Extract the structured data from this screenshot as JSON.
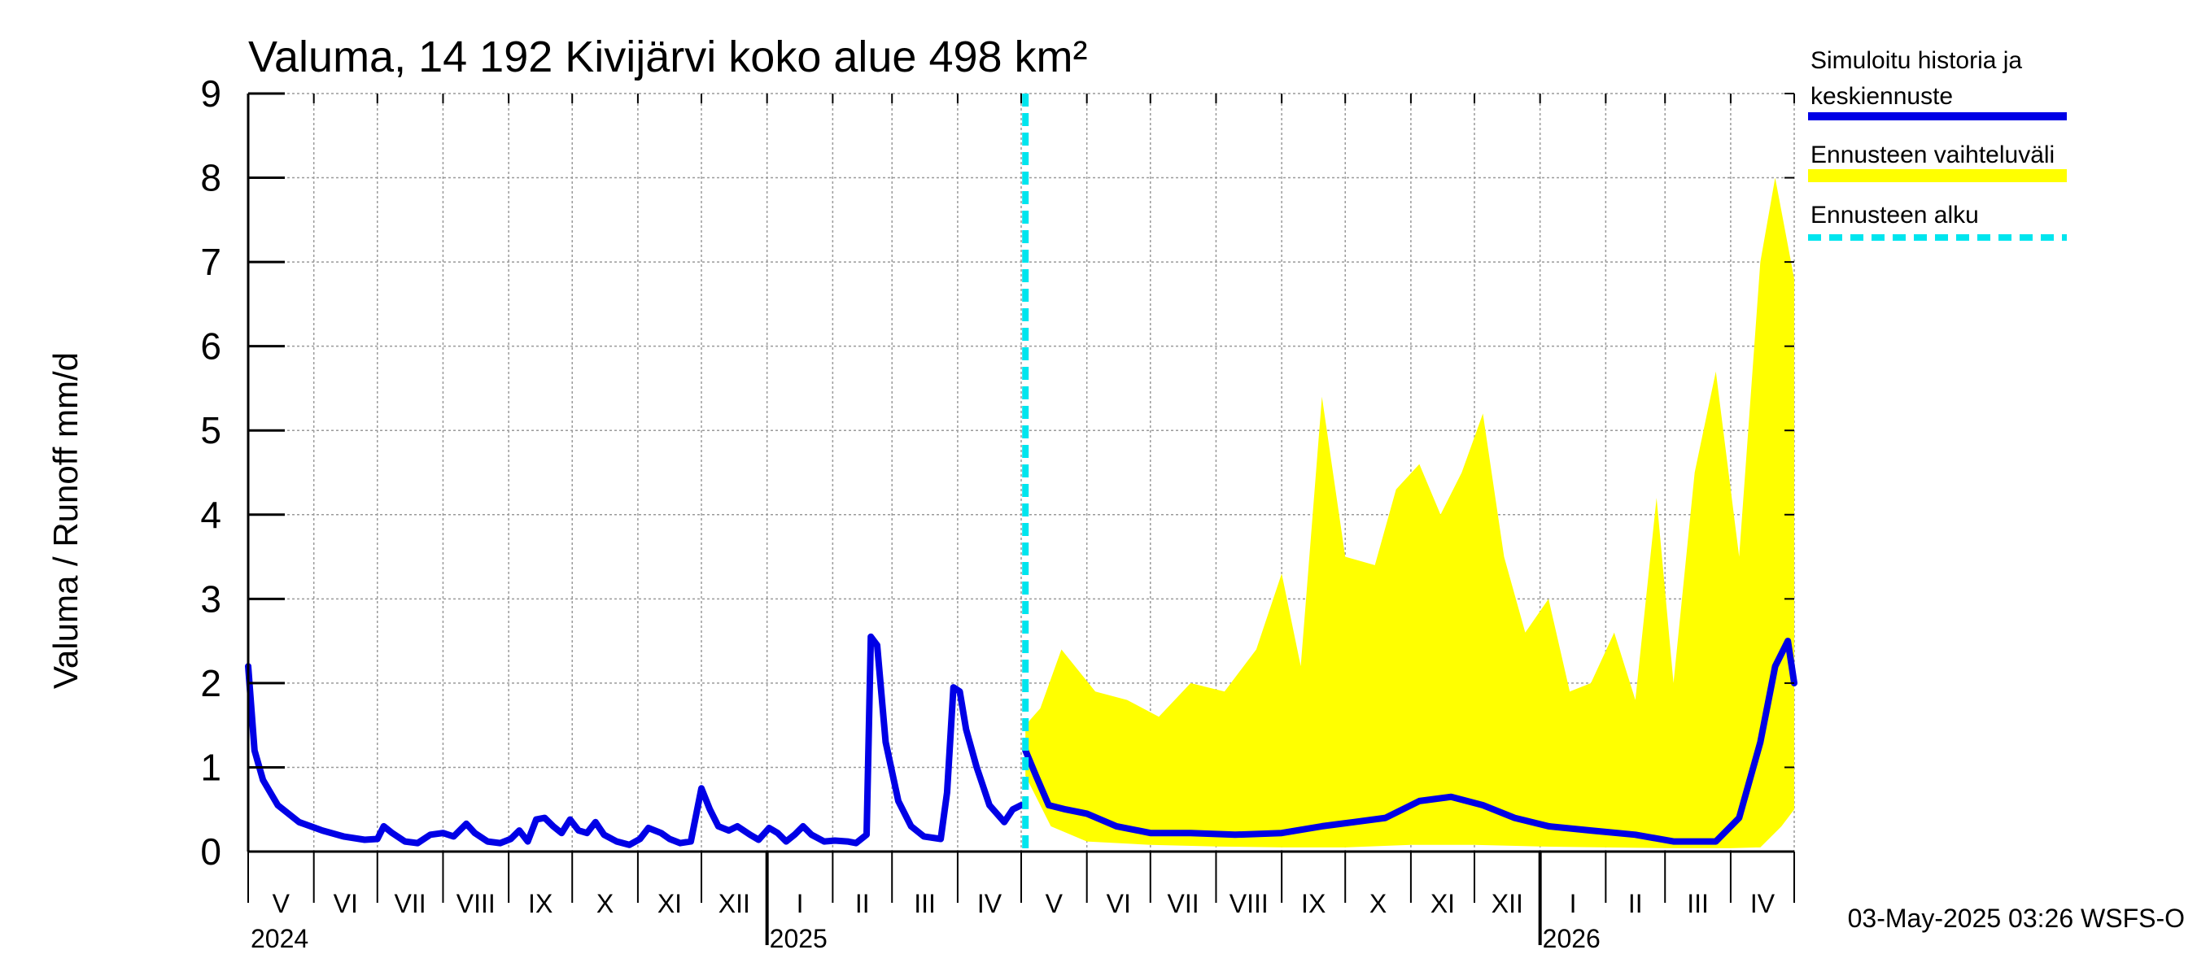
{
  "chart_data": {
    "type": "line",
    "title": "Valuma, 14 192 Kivijärvi koko alue 498 km²",
    "ylabel": "Valuma / Runoff    mm/d",
    "ylim": [
      0,
      9
    ],
    "yticks": [
      "0",
      "1",
      "2",
      "3",
      "4",
      "5",
      "6",
      "7",
      "8",
      "9"
    ],
    "xlim": [
      "2024-05-01",
      "2026-05-01"
    ],
    "grid": true,
    "legend_position": "right",
    "months": [
      "V",
      "VI",
      "VII",
      "VIII",
      "IX",
      "X",
      "XI",
      "XII",
      "I",
      "II",
      "III",
      "IV",
      "V",
      "VI",
      "VII",
      "VIII",
      "IX",
      "X",
      "XI",
      "XII",
      "I",
      "II",
      "III",
      "IV"
    ],
    "years": [
      "2024",
      "2025",
      "2026"
    ],
    "forecast_start": "2025-05-03",
    "colors": {
      "history": "#0000e6",
      "range": "#ffff00",
      "forecast_start": "#00e5ee"
    },
    "legend": [
      {
        "label_line1": "Simuloitu historia ja",
        "label_line2": "keskiennuste"
      },
      {
        "label_line1": "Ennusteen vaihteluväli",
        "label_line2": ""
      },
      {
        "label_line1": "Ennusteen alku",
        "label_line2": ""
      }
    ],
    "series": [
      {
        "name": "Simuloitu historia ja keskiennuste",
        "points": [
          [
            "2024-05-01",
            2.2
          ],
          [
            "2024-05-04",
            1.2
          ],
          [
            "2024-05-08",
            0.85
          ],
          [
            "2024-05-15",
            0.55
          ],
          [
            "2024-05-25",
            0.35
          ],
          [
            "2024-06-05",
            0.25
          ],
          [
            "2024-06-15",
            0.18
          ],
          [
            "2024-06-25",
            0.14
          ],
          [
            "2024-07-01",
            0.15
          ],
          [
            "2024-07-04",
            0.3
          ],
          [
            "2024-07-08",
            0.22
          ],
          [
            "2024-07-14",
            0.12
          ],
          [
            "2024-07-20",
            0.1
          ],
          [
            "2024-07-26",
            0.2
          ],
          [
            "2024-08-01",
            0.22
          ],
          [
            "2024-08-06",
            0.18
          ],
          [
            "2024-08-12",
            0.33
          ],
          [
            "2024-08-16",
            0.22
          ],
          [
            "2024-08-22",
            0.12
          ],
          [
            "2024-08-28",
            0.1
          ],
          [
            "2024-09-02",
            0.15
          ],
          [
            "2024-09-06",
            0.25
          ],
          [
            "2024-09-10",
            0.12
          ],
          [
            "2024-09-14",
            0.38
          ],
          [
            "2024-09-18",
            0.4
          ],
          [
            "2024-09-22",
            0.3
          ],
          [
            "2024-09-26",
            0.22
          ],
          [
            "2024-09-30",
            0.38
          ],
          [
            "2024-10-04",
            0.25
          ],
          [
            "2024-10-08",
            0.22
          ],
          [
            "2024-10-12",
            0.35
          ],
          [
            "2024-10-16",
            0.2
          ],
          [
            "2024-10-22",
            0.12
          ],
          [
            "2024-10-28",
            0.08
          ],
          [
            "2024-11-02",
            0.15
          ],
          [
            "2024-11-06",
            0.28
          ],
          [
            "2024-11-12",
            0.22
          ],
          [
            "2024-11-16",
            0.15
          ],
          [
            "2024-11-21",
            0.1
          ],
          [
            "2024-11-26",
            0.12
          ],
          [
            "2024-12-01",
            0.75
          ],
          [
            "2024-12-05",
            0.5
          ],
          [
            "2024-12-09",
            0.3
          ],
          [
            "2024-12-14",
            0.25
          ],
          [
            "2024-12-18",
            0.3
          ],
          [
            "2024-12-24",
            0.2
          ],
          [
            "2024-12-28",
            0.14
          ],
          [
            "2025-01-02",
            0.28
          ],
          [
            "2025-01-06",
            0.22
          ],
          [
            "2025-01-10",
            0.12
          ],
          [
            "2025-01-14",
            0.2
          ],
          [
            "2025-01-18",
            0.3
          ],
          [
            "2025-01-22",
            0.2
          ],
          [
            "2025-01-28",
            0.12
          ],
          [
            "2025-02-02",
            0.13
          ],
          [
            "2025-02-08",
            0.12
          ],
          [
            "2025-02-12",
            0.1
          ],
          [
            "2025-02-17",
            0.2
          ],
          [
            "2025-02-19",
            2.55
          ],
          [
            "2025-02-22",
            2.45
          ],
          [
            "2025-02-26",
            1.3
          ],
          [
            "2025-03-04",
            0.6
          ],
          [
            "2025-03-10",
            0.3
          ],
          [
            "2025-03-16",
            0.18
          ],
          [
            "2025-03-24",
            0.15
          ],
          [
            "2025-03-27",
            0.7
          ],
          [
            "2025-03-30",
            1.95
          ],
          [
            "2025-04-02",
            1.9
          ],
          [
            "2025-04-05",
            1.45
          ],
          [
            "2025-04-10",
            1.0
          ],
          [
            "2025-04-16",
            0.55
          ],
          [
            "2025-04-23",
            0.35
          ],
          [
            "2025-04-27",
            0.5
          ],
          [
            "2025-05-01",
            0.55
          ]
        ]
      },
      {
        "name": "keskiennuste",
        "points": [
          [
            "2025-05-03",
            1.2
          ],
          [
            "2025-05-08",
            0.9
          ],
          [
            "2025-05-14",
            0.55
          ],
          [
            "2025-05-22",
            0.5
          ],
          [
            "2025-06-01",
            0.45
          ],
          [
            "2025-06-15",
            0.3
          ],
          [
            "2025-07-01",
            0.22
          ],
          [
            "2025-07-20",
            0.22
          ],
          [
            "2025-08-10",
            0.2
          ],
          [
            "2025-09-01",
            0.22
          ],
          [
            "2025-09-20",
            0.3
          ],
          [
            "2025-10-05",
            0.35
          ],
          [
            "2025-10-20",
            0.4
          ],
          [
            "2025-11-05",
            0.6
          ],
          [
            "2025-11-20",
            0.65
          ],
          [
            "2025-12-05",
            0.55
          ],
          [
            "2025-12-20",
            0.4
          ],
          [
            "2026-01-05",
            0.3
          ],
          [
            "2026-01-25",
            0.25
          ],
          [
            "2026-02-15",
            0.2
          ],
          [
            "2026-03-05",
            0.12
          ],
          [
            "2026-03-25",
            0.12
          ],
          [
            "2026-04-05",
            0.4
          ],
          [
            "2026-04-15",
            1.3
          ],
          [
            "2026-04-22",
            2.2
          ],
          [
            "2026-04-28",
            2.5
          ],
          [
            "2026-05-01",
            2.0
          ]
        ]
      }
    ],
    "range_upper": [
      [
        "2025-05-03",
        1.5
      ],
      [
        "2025-05-10",
        1.7
      ],
      [
        "2025-05-20",
        2.4
      ],
      [
        "2025-06-05",
        1.9
      ],
      [
        "2025-06-20",
        1.8
      ],
      [
        "2025-07-05",
        1.6
      ],
      [
        "2025-07-20",
        2.0
      ],
      [
        "2025-08-05",
        1.9
      ],
      [
        "2025-08-20",
        2.4
      ],
      [
        "2025-09-01",
        3.3
      ],
      [
        "2025-09-10",
        2.2
      ],
      [
        "2025-09-20",
        5.4
      ],
      [
        "2025-10-01",
        3.5
      ],
      [
        "2025-10-15",
        3.4
      ],
      [
        "2025-10-25",
        4.3
      ],
      [
        "2025-11-05",
        4.6
      ],
      [
        "2025-11-15",
        4.0
      ],
      [
        "2025-11-25",
        4.5
      ],
      [
        "2025-12-05",
        5.2
      ],
      [
        "2025-12-15",
        3.5
      ],
      [
        "2025-12-25",
        2.6
      ],
      [
        "2026-01-05",
        3.0
      ],
      [
        "2026-01-15",
        1.9
      ],
      [
        "2026-01-25",
        2.0
      ],
      [
        "2026-02-05",
        2.6
      ],
      [
        "2026-02-15",
        1.8
      ],
      [
        "2026-02-25",
        4.2
      ],
      [
        "2026-03-05",
        2.0
      ],
      [
        "2026-03-15",
        4.5
      ],
      [
        "2026-03-25",
        5.7
      ],
      [
        "2026-04-05",
        3.5
      ],
      [
        "2026-04-15",
        7.0
      ],
      [
        "2026-04-22",
        8.0
      ],
      [
        "2026-05-01",
        6.8
      ]
    ],
    "range_lower": [
      [
        "2025-05-03",
        0.9
      ],
      [
        "2025-05-15",
        0.3
      ],
      [
        "2025-06-01",
        0.12
      ],
      [
        "2025-07-01",
        0.08
      ],
      [
        "2025-08-01",
        0.06
      ],
      [
        "2025-09-01",
        0.05
      ],
      [
        "2025-10-01",
        0.05
      ],
      [
        "2025-11-01",
        0.08
      ],
      [
        "2025-12-01",
        0.08
      ],
      [
        "2026-01-01",
        0.06
      ],
      [
        "2026-02-01",
        0.05
      ],
      [
        "2026-03-01",
        0.04
      ],
      [
        "2026-04-01",
        0.04
      ],
      [
        "2026-04-15",
        0.05
      ],
      [
        "2026-04-25",
        0.3
      ],
      [
        "2026-05-01",
        0.5
      ]
    ]
  },
  "footer": "03-May-2025 03:26 WSFS-O"
}
